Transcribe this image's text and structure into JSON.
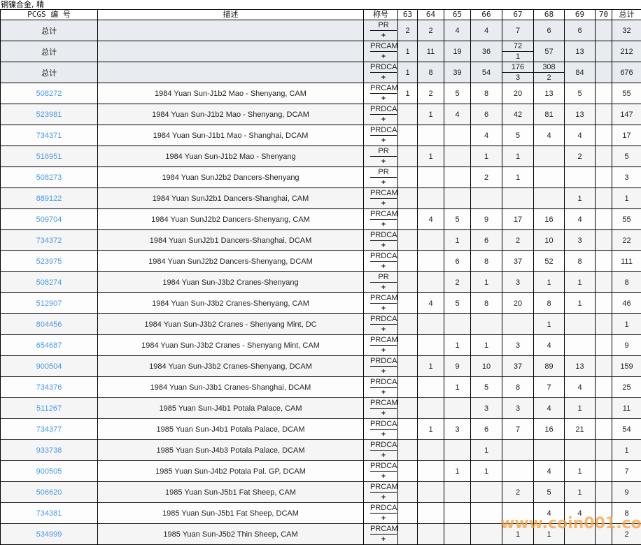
{
  "title": "铜镍合金, 精",
  "headers": {
    "pcgs": "PCGS 编 号",
    "desc": "描述",
    "grade": "称号",
    "g63": "63",
    "g64": "64",
    "g65": "65",
    "g66": "66",
    "g67": "67",
    "g68": "68",
    "g69": "69",
    "g70": "70",
    "total": "总计"
  },
  "plus": "+",
  "totals": [
    {
      "label": "总计",
      "grade": "PR",
      "cells": [
        "2",
        "2",
        "4",
        "4",
        "7",
        "6",
        "6",
        "",
        "32"
      ]
    },
    {
      "label": "总计",
      "grade": "PRCAM",
      "cells": [
        "1",
        "11",
        "19",
        "36",
        [
          "72",
          "1"
        ],
        "57",
        "13",
        "",
        "212"
      ]
    },
    {
      "label": "总计",
      "grade": "PRDCAM",
      "cells": [
        "1",
        "8",
        "39",
        "54",
        [
          "176",
          "3"
        ],
        [
          "308",
          "2"
        ],
        "84",
        "",
        "676"
      ]
    }
  ],
  "rows": [
    {
      "pcgs": "508272",
      "desc": "1984 Yuan Sun-J1b2 Mao - Shenyang, CAM",
      "grade": "PRCAM",
      "cells": [
        "1",
        "2",
        "5",
        "8",
        "20",
        "13",
        "5",
        "",
        "55"
      ]
    },
    {
      "pcgs": "523981",
      "desc": "1984 Yuan Sun-J1b2 Mao - Shenyang, DCAM",
      "grade": "PRDCAM",
      "cells": [
        "",
        "1",
        "4",
        "6",
        "42",
        "81",
        "13",
        "",
        "147"
      ]
    },
    {
      "pcgs": "734371",
      "desc": "1984 Yuan Sun-J1b1 Mao - Shanghai, DCAM",
      "grade": "PRDCAM",
      "cells": [
        "",
        "",
        "",
        "4",
        "5",
        "4",
        "4",
        "",
        "17"
      ]
    },
    {
      "pcgs": "516951",
      "desc": "1984 Yuan Sun-J1b2 Mao - Shenyang",
      "grade": "PR",
      "cells": [
        "",
        "1",
        "",
        "1",
        "1",
        "",
        "2",
        "",
        "5"
      ]
    },
    {
      "pcgs": "508273",
      "desc": "1984 Yuan SunJ2b2 Dancers-Shenyang",
      "grade": "PR",
      "cells": [
        "",
        "",
        "",
        "2",
        "1",
        "",
        "",
        "",
        "3"
      ]
    },
    {
      "pcgs": "889122",
      "desc": "1984 Yuan SunJ2b1 Dancers-Shanghai, CAM",
      "grade": "PRCAM",
      "cells": [
        "",
        "",
        "",
        "",
        "",
        "",
        "1",
        "",
        "1"
      ]
    },
    {
      "pcgs": "509704",
      "desc": "1984 Yuan SunJ2b2 Dancers-Shenyang, CAM",
      "grade": "PRCAM",
      "cells": [
        "",
        "4",
        "5",
        "9",
        "17",
        "16",
        "4",
        "",
        "55"
      ]
    },
    {
      "pcgs": "734372",
      "desc": "1984 Yuan SunJ2b1 Dancers-Shanghai, DCAM",
      "grade": "PRDCAM",
      "cells": [
        "",
        "",
        "1",
        "6",
        "2",
        "10",
        "3",
        "",
        "22"
      ]
    },
    {
      "pcgs": "523975",
      "desc": "1984 Yuan SunJ2b2 Dancers-Shenyang, DCAM",
      "grade": "PRDCAM",
      "cells": [
        "",
        "",
        "6",
        "8",
        "37",
        "52",
        "8",
        "",
        "111"
      ]
    },
    {
      "pcgs": "508274",
      "desc": "1984 Yuan Sun-J3b2 Cranes-Shenyang",
      "grade": "PR",
      "cells": [
        "",
        "",
        "2",
        "1",
        "3",
        "1",
        "1",
        "",
        "8"
      ]
    },
    {
      "pcgs": "512907",
      "desc": "1984 Yuan Sun-J3b2 Cranes-Shenyang, CAM",
      "grade": "PRCAM",
      "cells": [
        "",
        "4",
        "5",
        "8",
        "20",
        "8",
        "1",
        "",
        "46"
      ]
    },
    {
      "pcgs": "804456",
      "desc": "1984 Yuan Sun-J3b2 Cranes - Shenyang Mint, DC",
      "grade": "PRDCAM",
      "cells": [
        "",
        "",
        "",
        "",
        "",
        "1",
        "",
        "",
        "1"
      ]
    },
    {
      "pcgs": "654687",
      "desc": "1984 Yuan Sun-J3b2 Cranes - Shenyang Mint, CAM",
      "grade": "PRCAM",
      "cells": [
        "",
        "",
        "1",
        "1",
        "3",
        "4",
        "",
        "",
        "9"
      ]
    },
    {
      "pcgs": "900504",
      "desc": "1984 Yuan Sun-J3b2 Cranes-Shenyang, DCAM",
      "grade": "PRDCAM",
      "cells": [
        "",
        "1",
        "9",
        "10",
        "37",
        "89",
        "13",
        "",
        "159"
      ]
    },
    {
      "pcgs": "734376",
      "desc": "1984 Yuan Sun-J3b1 Cranes-Shanghai, DCAM",
      "grade": "PRDCAM",
      "cells": [
        "",
        "",
        "1",
        "5",
        "8",
        "7",
        "4",
        "",
        "25"
      ]
    },
    {
      "pcgs": "511267",
      "desc": "1985 Yuan Sun-J4b1 Potala Palace, CAM",
      "grade": "PRCAM",
      "cells": [
        "",
        "",
        "",
        "3",
        "3",
        "4",
        "1",
        "",
        "11"
      ]
    },
    {
      "pcgs": "734377",
      "desc": "1985 Yuan Sun-J4b1 Potala Palace, DCAM",
      "grade": "PRDCAM",
      "cells": [
        "",
        "1",
        "3",
        "6",
        "7",
        "16",
        "21",
        "",
        "54"
      ]
    },
    {
      "pcgs": "933738",
      "desc": "1985 Yuan Sun-J4b3 Potala Palace, DCAM",
      "grade": "PRDCAM",
      "cells": [
        "",
        "",
        "",
        "1",
        "",
        "",
        "",
        "",
        "1"
      ]
    },
    {
      "pcgs": "900505",
      "desc": "1985 Yuan Sun-J4b2 Potala Pal. GP, DCAM",
      "grade": "PRDCAM",
      "cells": [
        "",
        "",
        "1",
        "1",
        "",
        "4",
        "1",
        "",
        "7"
      ]
    },
    {
      "pcgs": "506620",
      "desc": "1985 Yuan Sun-J5b1 Fat Sheep, CAM",
      "grade": "PRCAM",
      "cells": [
        "",
        "",
        "",
        "",
        "2",
        "5",
        "1",
        "",
        "9"
      ]
    },
    {
      "pcgs": "734381",
      "desc": "1985 Yuan Sun-J5b1 Fat Sheep, DCAM",
      "grade": "PRDCAM",
      "cells": [
        "",
        "",
        "",
        "",
        "",
        "4",
        "4",
        "",
        "8"
      ]
    },
    {
      "pcgs": "534999",
      "desc": "1985 Yuan Sun-J5b2 Thin Sheep, CAM",
      "grade": "PRCAM",
      "cells": [
        "",
        "",
        "",
        "",
        "1",
        "1",
        "",
        "",
        "2"
      ]
    }
  ],
  "watermark": "www.coin001.com",
  "colors": {
    "link": "#4a9be8",
    "total_bg": "#e8ecf0",
    "row_alt_bg": "#f5f5f5",
    "watermark": "#f5a040"
  }
}
